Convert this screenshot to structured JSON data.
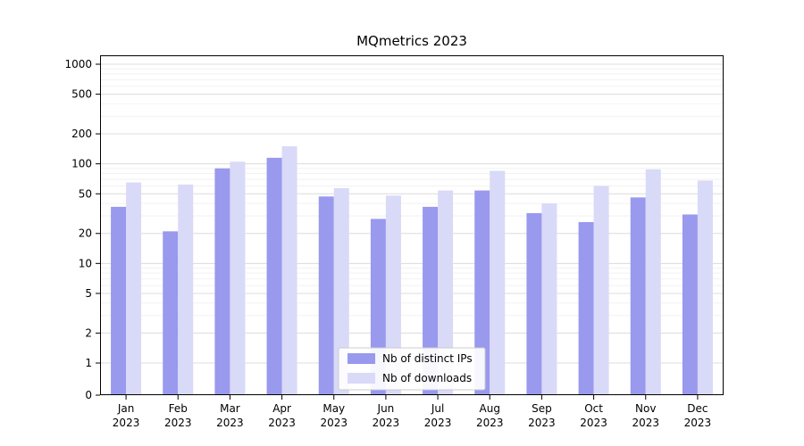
{
  "chart_data": {
    "type": "bar",
    "title": "MQmetrics 2023",
    "categories": [
      "Jan 2023",
      "Feb 2023",
      "Mar 2023",
      "Apr 2023",
      "May 2023",
      "Jun 2023",
      "Jul 2023",
      "Aug 2023",
      "Sep 2023",
      "Oct 2023",
      "Nov 2023",
      "Dec 2023"
    ],
    "series": [
      {
        "name": "Nb of distinct IPs",
        "color": "#9999ee",
        "values": [
          37,
          21,
          90,
          115,
          47,
          28,
          37,
          54,
          32,
          26,
          46,
          31
        ]
      },
      {
        "name": "Nb of downloads",
        "color": "#d9d9f8",
        "values": [
          65,
          62,
          105,
          150,
          57,
          48,
          54,
          85,
          40,
          60,
          88,
          68
        ]
      }
    ],
    "yscale": "symlog",
    "yticks": [
      0,
      1,
      2,
      5,
      10,
      20,
      50,
      100,
      200,
      500,
      1000
    ],
    "ylim": [
      0,
      1000
    ],
    "xlabel": "",
    "ylabel": "",
    "grid": true,
    "legend_position": "lower center",
    "colors": {
      "background": "#ffffff",
      "axis": "#000000",
      "grid_major": "#dcdcdc",
      "grid_minor": "#f2f2f2",
      "legend_border": "#cccccc"
    }
  }
}
